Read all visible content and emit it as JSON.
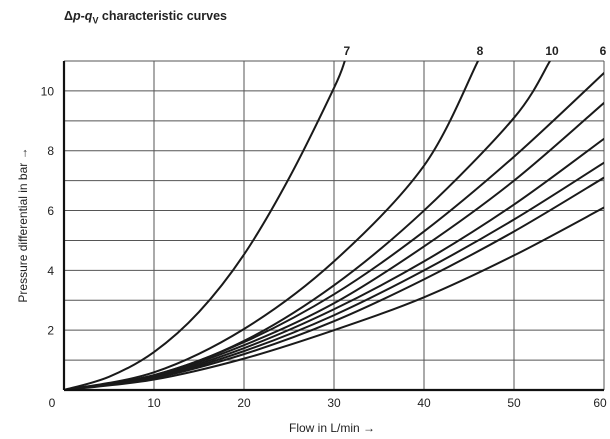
{
  "chart_data": {
    "type": "line",
    "title": {
      "prefix": "Δ",
      "p": "p",
      "dash": "-",
      "q": "q",
      "sub": "V",
      "rest": " characteristic curves"
    },
    "xlabel": "Flow in L/min →",
    "ylabel": "Pressure differential in bar →",
    "xlim": [
      0,
      60
    ],
    "ylim": [
      0,
      11
    ],
    "xticks": [
      0,
      10,
      20,
      30,
      40,
      50,
      60
    ],
    "xtick_labels": [
      "0",
      "10",
      "20",
      "30",
      "40",
      "50",
      "60"
    ],
    "yticks": [
      0,
      2,
      4,
      6,
      8,
      10
    ],
    "ytick_labels": [
      "0",
      "2",
      "4",
      "6",
      "8",
      "10"
    ],
    "grid": true,
    "legend": "labels at top end of curves",
    "series": [
      {
        "name": "7",
        "x": [
          0,
          5,
          10,
          15,
          20,
          25,
          30,
          31.2
        ],
        "y": [
          0,
          0.44,
          1.27,
          2.61,
          4.53,
          7.08,
          10.1,
          11
        ]
      },
      {
        "name": "8",
        "x": [
          0,
          10,
          20,
          30,
          40,
          46
        ],
        "y": [
          0,
          0.59,
          2.04,
          4.3,
          7.5,
          11
        ]
      },
      {
        "name": "10",
        "x": [
          0,
          10,
          20,
          30,
          40,
          50,
          54
        ],
        "y": [
          0,
          0.49,
          1.64,
          3.5,
          6.0,
          9.1,
          11
        ]
      },
      {
        "x": [
          0,
          10,
          20,
          30,
          40,
          50,
          60
        ],
        "y": [
          0,
          0.5,
          1.6,
          3.2,
          5.3,
          7.8,
          10.6
        ]
      },
      {
        "x": [
          0,
          10,
          20,
          30,
          40,
          50,
          60
        ],
        "y": [
          0,
          0.48,
          1.5,
          2.9,
          4.8,
          7.0,
          9.6
        ]
      },
      {
        "x": [
          0,
          10,
          20,
          30,
          40,
          50,
          60
        ],
        "y": [
          0,
          0.45,
          1.4,
          2.7,
          4.3,
          6.2,
          8.4
        ]
      },
      {
        "x": [
          0,
          10,
          20,
          30,
          40,
          50,
          60
        ],
        "y": [
          0,
          0.42,
          1.3,
          2.5,
          4.0,
          5.7,
          7.6
        ]
      },
      {
        "x": [
          0,
          10,
          20,
          30,
          40,
          50,
          60
        ],
        "y": [
          0,
          0.4,
          1.2,
          2.3,
          3.7,
          5.3,
          7.1
        ]
      },
      {
        "x": [
          0,
          10,
          20,
          30,
          40,
          50,
          60
        ],
        "y": [
          0,
          0.35,
          1.05,
          2.0,
          3.1,
          4.5,
          6.1
        ]
      }
    ],
    "corner_label": "6"
  }
}
